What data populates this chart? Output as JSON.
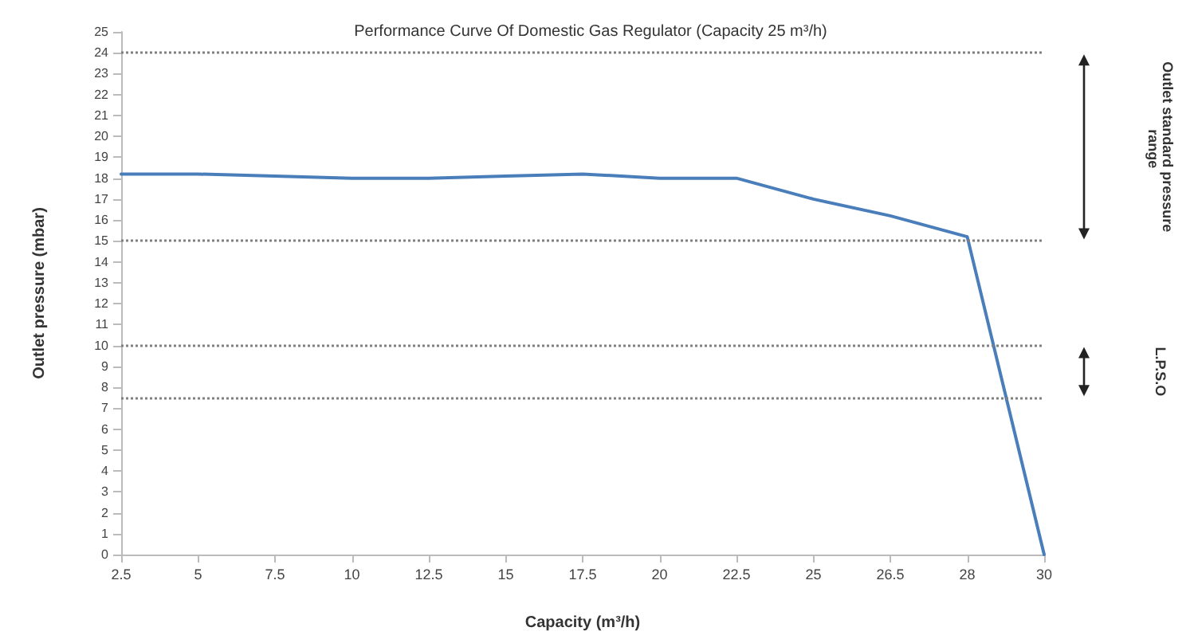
{
  "chart_data": {
    "type": "line",
    "title": "Performance Curve Of Domestic Gas Regulator (Capacity 25 m³/h)",
    "xlabel": "Capacity (m³/h)",
    "ylabel": "Outlet pressure (mbar)",
    "categories": [
      "2.5",
      "5",
      "7.5",
      "10",
      "12.5",
      "15",
      "17.5",
      "20",
      "22.5",
      "25",
      "26.5",
      "28",
      "30"
    ],
    "series": [
      {
        "color": "#4a7ebb",
        "values": [
          18.2,
          18.2,
          18.1,
          18.0,
          18.0,
          18.1,
          18.2,
          18.0,
          18.0,
          17.0,
          16.2,
          15.2,
          0
        ]
      }
    ],
    "ylim": [
      0,
      25
    ],
    "yticks": [
      0,
      1,
      2,
      3,
      4,
      5,
      6,
      7,
      8,
      9,
      10,
      11,
      12,
      13,
      14,
      15,
      16,
      17,
      18,
      19,
      20,
      21,
      22,
      23,
      24,
      25
    ],
    "ref_lines": [
      {
        "axis": "y",
        "value": 24,
        "color": "#808080",
        "line_style": "dotted"
      },
      {
        "axis": "y",
        "value": 15,
        "color": "#808080",
        "line_style": "dotted"
      },
      {
        "axis": "y",
        "value": 10,
        "color": "#808080",
        "line_style": "dotted"
      },
      {
        "axis": "y",
        "value": 7.5,
        "color": "#808080",
        "line_style": "dotted"
      }
    ],
    "annotations": [
      "Outlet standard pressure range",
      "L.P.S.O"
    ],
    "grid": false,
    "marker": "none",
    "line_style": "solid"
  }
}
